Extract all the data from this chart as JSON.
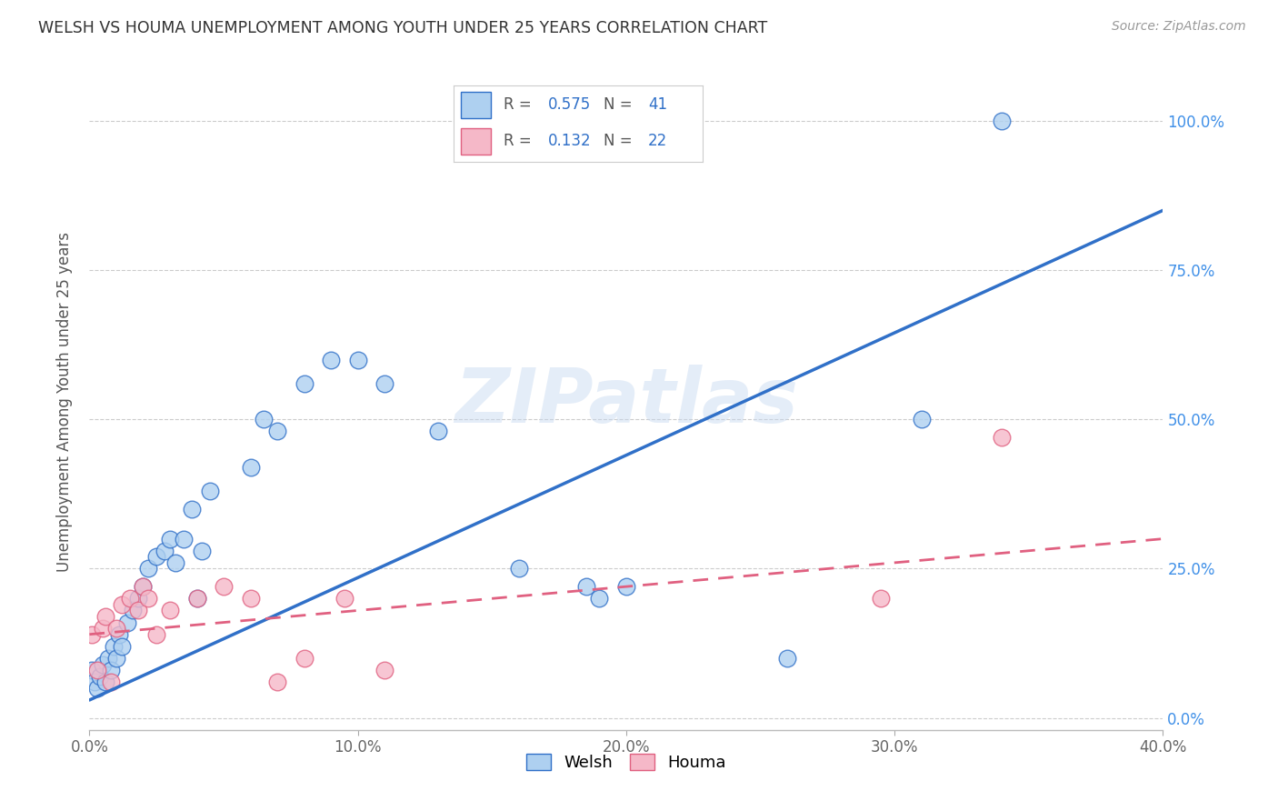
{
  "title": "WELSH VS HOUMA UNEMPLOYMENT AMONG YOUTH UNDER 25 YEARS CORRELATION CHART",
  "source": "Source: ZipAtlas.com",
  "ylabel": "Unemployment Among Youth under 25 years",
  "xlabel_ticks": [
    "0.0%",
    "10.0%",
    "20.0%",
    "30.0%",
    "40.0%"
  ],
  "ylabel_ticks": [
    "0.0%",
    "25.0%",
    "50.0%",
    "75.0%",
    "100.0%"
  ],
  "xlim": [
    0.0,
    0.4
  ],
  "ylim": [
    -0.02,
    1.08
  ],
  "welsh_R": 0.575,
  "welsh_N": 41,
  "houma_R": 0.132,
  "houma_N": 22,
  "welsh_color": "#aed0f0",
  "houma_color": "#f5b8c8",
  "welsh_line_color": "#3070c8",
  "houma_line_color": "#e06080",
  "background_color": "#ffffff",
  "watermark": "ZIPatlas",
  "welsh_x": [
    0.001,
    0.002,
    0.003,
    0.004,
    0.005,
    0.006,
    0.007,
    0.008,
    0.009,
    0.01,
    0.011,
    0.012,
    0.014,
    0.016,
    0.018,
    0.02,
    0.022,
    0.025,
    0.028,
    0.03,
    0.032,
    0.035,
    0.038,
    0.04,
    0.042,
    0.045,
    0.06,
    0.065,
    0.07,
    0.08,
    0.09,
    0.1,
    0.11,
    0.13,
    0.16,
    0.185,
    0.19,
    0.2,
    0.26,
    0.31,
    0.34
  ],
  "welsh_y": [
    0.08,
    0.06,
    0.05,
    0.07,
    0.09,
    0.06,
    0.1,
    0.08,
    0.12,
    0.1,
    0.14,
    0.12,
    0.16,
    0.18,
    0.2,
    0.22,
    0.25,
    0.27,
    0.28,
    0.3,
    0.26,
    0.3,
    0.35,
    0.2,
    0.28,
    0.38,
    0.42,
    0.5,
    0.48,
    0.56,
    0.6,
    0.6,
    0.56,
    0.48,
    0.25,
    0.22,
    0.2,
    0.22,
    0.1,
    0.5,
    1.0
  ],
  "houma_x": [
    0.001,
    0.003,
    0.005,
    0.006,
    0.008,
    0.01,
    0.012,
    0.015,
    0.018,
    0.02,
    0.022,
    0.025,
    0.03,
    0.04,
    0.05,
    0.06,
    0.07,
    0.08,
    0.095,
    0.11,
    0.295,
    0.34
  ],
  "houma_y": [
    0.14,
    0.08,
    0.15,
    0.17,
    0.06,
    0.15,
    0.19,
    0.2,
    0.18,
    0.22,
    0.2,
    0.14,
    0.18,
    0.2,
    0.22,
    0.2,
    0.06,
    0.1,
    0.2,
    0.08,
    0.2,
    0.47
  ]
}
